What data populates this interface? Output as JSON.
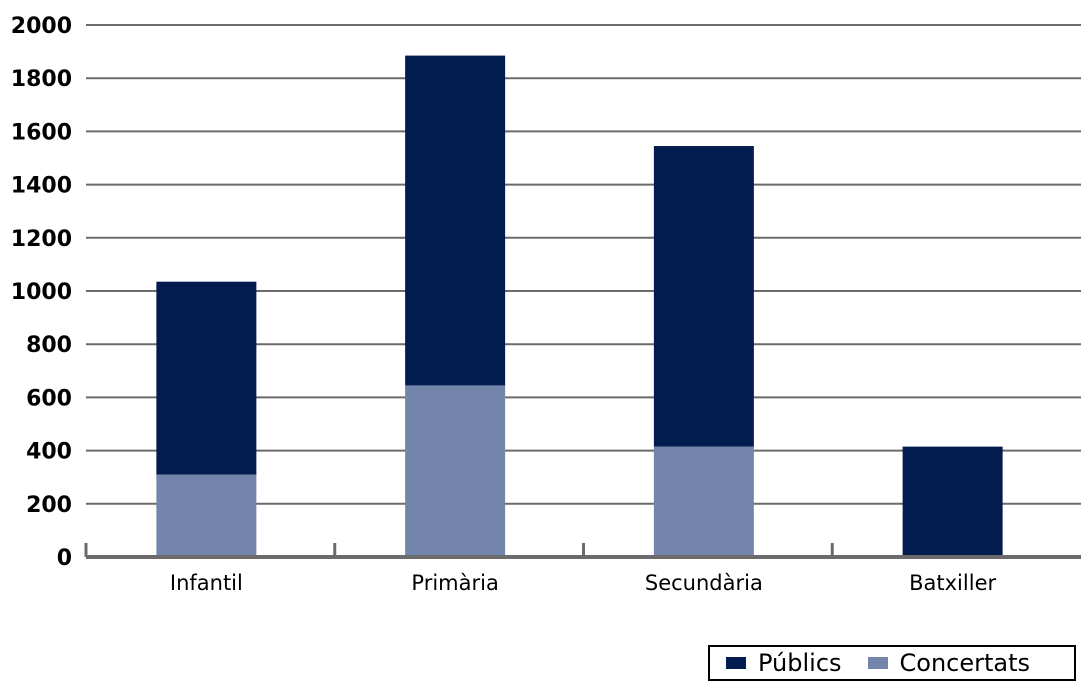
{
  "chart_data": {
    "type": "bar",
    "stacked": true,
    "categories": [
      "Infantil",
      "Primària",
      "Secundària",
      "Batxiller"
    ],
    "series": [
      {
        "name": "Concertats",
        "color": "#7385aa",
        "values": [
          310,
          645,
          415,
          0
        ]
      },
      {
        "name": "Públics",
        "color": "#031c4f",
        "values": [
          725,
          1240,
          1130,
          415
        ]
      }
    ],
    "ylim": [
      0,
      2000
    ],
    "yticks": [
      "0",
      "200",
      "400",
      "600",
      "800",
      "1000",
      "1200",
      "1400",
      "1600",
      "1800",
      "2000"
    ],
    "grid": true,
    "legend": {
      "position": "bottom-right",
      "entries": [
        {
          "label": "Públics",
          "color": "#031c4f"
        },
        {
          "label": "Concertats",
          "color": "#7385aa"
        }
      ]
    },
    "title": "",
    "xlabel": "",
    "ylabel": ""
  }
}
